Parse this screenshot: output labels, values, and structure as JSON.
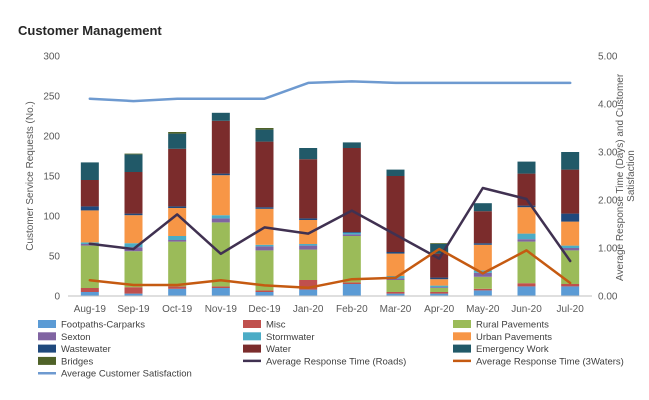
{
  "chart_data": {
    "type": "bar",
    "stacked": true,
    "title": "Customer Management",
    "ylabel": "Customer Service Requests (No.)",
    "y2label": "Average Response Time (Days) and Customer Satisfaction",
    "ylim": [
      0,
      300
    ],
    "y2lim": [
      0,
      5
    ],
    "yticks": [
      "0",
      "50",
      "100",
      "150",
      "200",
      "250",
      "300"
    ],
    "y2ticks": [
      "0.00",
      "1.00",
      "2.00",
      "3.00",
      "4.00",
      "5.00"
    ],
    "grid": false,
    "legend_position": "bottom",
    "categories": [
      "Aug-19",
      "Sep-19",
      "Oct-19",
      "Nov-19",
      "Dec-19",
      "Jan-20",
      "Feb-20",
      "Mar-20",
      "Apr-20",
      "May-20",
      "Jun-20",
      "Jul-20"
    ],
    "series": [
      {
        "name": "Footpaths-Carparks",
        "kind": "bar",
        "color": "#5B9BD5",
        "values": [
          5,
          3,
          9,
          10,
          5,
          8,
          15,
          3,
          3,
          7,
          12,
          12
        ]
      },
      {
        "name": "Misc",
        "kind": "bar",
        "color": "#C0504D",
        "values": [
          5,
          8,
          3,
          2,
          2,
          12,
          2,
          2,
          2,
          2,
          4,
          3
        ]
      },
      {
        "name": "Rural Pavements",
        "kind": "bar",
        "color": "#9BBB59",
        "values": [
          53,
          45,
          56,
          80,
          50,
          38,
          58,
          15,
          5,
          15,
          52,
          42
        ]
      },
      {
        "name": "Sexton",
        "kind": "bar",
        "color": "#8064A2",
        "values": [
          2,
          5,
          2,
          5,
          5,
          5,
          2,
          2,
          1,
          5,
          3,
          3
        ]
      },
      {
        "name": "Stormwater",
        "kind": "bar",
        "color": "#4BACC6",
        "values": [
          2,
          5,
          5,
          4,
          2,
          2,
          2,
          3,
          2,
          3,
          7,
          3
        ]
      },
      {
        "name": "Urban Pavements",
        "kind": "bar",
        "color": "#F79646",
        "values": [
          40,
          35,
          35,
          50,
          45,
          30,
          0,
          28,
          8,
          32,
          33,
          30
        ]
      },
      {
        "name": "Wastewater",
        "kind": "bar",
        "color": "#1F497D",
        "values": [
          5,
          2,
          2,
          2,
          2,
          2,
          1,
          2,
          2,
          2,
          2,
          10
        ]
      },
      {
        "name": "Water",
        "kind": "bar",
        "color": "#7B2C2C",
        "values": [
          33,
          52,
          72,
          66,
          82,
          74,
          105,
          95,
          30,
          40,
          40,
          55
        ]
      },
      {
        "name": "Emergency Work",
        "kind": "bar",
        "color": "#215968",
        "values": [
          22,
          22,
          19,
          10,
          15,
          14,
          7,
          8,
          12,
          10,
          15,
          22
        ]
      },
      {
        "name": "Bridges",
        "kind": "bar",
        "color": "#4F6228",
        "values": [
          0,
          1,
          2,
          0,
          2,
          0,
          0,
          0,
          1,
          0,
          0,
          0
        ]
      },
      {
        "name": "Average Response Time (Roads)",
        "kind": "line",
        "axis": "y2",
        "color": "#403151",
        "values": [
          1.09,
          0.98,
          1.7,
          0.88,
          1.43,
          1.3,
          1.78,
          1.28,
          0.78,
          2.25,
          2.02,
          0.73
        ]
      },
      {
        "name": "Average Response Time (3Waters)",
        "kind": "line",
        "axis": "y2",
        "color": "#C55A11",
        "values": [
          0.33,
          0.23,
          0.23,
          0.33,
          0.22,
          0.17,
          0.35,
          0.38,
          0.98,
          0.47,
          0.95,
          0.27
        ]
      },
      {
        "name": "Average Customer Satisfaction",
        "kind": "line",
        "axis": "y2",
        "color": "#6E9AD0",
        "values": [
          4.11,
          4.06,
          4.11,
          4.11,
          4.11,
          4.44,
          4.47,
          4.44,
          4.44,
          4.44,
          4.44,
          4.44
        ]
      }
    ]
  }
}
